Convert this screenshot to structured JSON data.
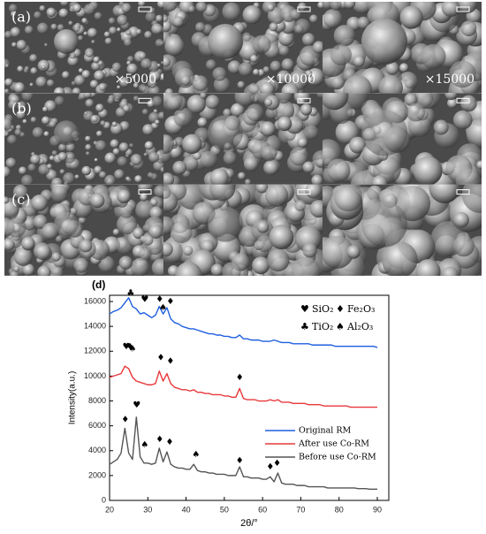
{
  "sem_figure": {
    "row_labels": [
      "(a)",
      "(b)",
      "(c)"
    ],
    "magnifications": [
      "×5000",
      "×10000",
      "×15000"
    ]
  },
  "chart_data": {
    "type": "line",
    "panel_label": "(d)",
    "x_label": "2θ/°",
    "y_label": "Intensity(a.u.)",
    "xlim": [
      20,
      93
    ],
    "xticks": [
      20,
      30,
      40,
      50,
      60,
      70,
      80,
      90
    ],
    "ylim": [
      0,
      16500
    ],
    "yticks": [
      0,
      2000,
      4000,
      6000,
      8000,
      10000,
      12000,
      14000,
      16000
    ],
    "x": [
      20,
      21,
      22,
      23,
      24,
      25,
      26,
      27,
      28,
      29,
      30,
      31,
      32,
      33,
      34,
      35,
      36,
      37,
      38,
      39,
      40,
      41,
      42,
      43,
      44,
      45,
      46,
      47,
      48,
      49,
      50,
      51,
      52,
      53,
      54,
      55,
      56,
      57,
      58,
      59,
      60,
      61,
      62,
      63,
      64,
      65,
      66,
      67,
      68,
      69,
      70,
      71,
      72,
      73,
      74,
      75,
      76,
      77,
      78,
      79,
      80,
      81,
      82,
      83,
      84,
      85,
      86,
      87,
      88,
      89,
      90
    ],
    "series": [
      {
        "name": "Original RM",
        "color": "#1f5fe0",
        "values": [
          15000,
          15200,
          15300,
          15500,
          15900,
          16300,
          15600,
          15400,
          15000,
          15100,
          14900,
          14700,
          14900,
          15600,
          15000,
          15500,
          14600,
          14300,
          14200,
          14000,
          13900,
          13800,
          13800,
          13700,
          13600,
          13500,
          13400,
          13400,
          13300,
          13300,
          13200,
          13200,
          13100,
          13100,
          13300,
          13000,
          13000,
          12900,
          12900,
          12900,
          12800,
          12800,
          12800,
          12900,
          12800,
          12700,
          12700,
          12700,
          12600,
          12600,
          12600,
          12600,
          12600,
          12500,
          12500,
          12500,
          12500,
          12500,
          12500,
          12400,
          12400,
          12400,
          12400,
          12400,
          12400,
          12400,
          12400,
          12400,
          12400,
          12400,
          12300
        ]
      },
      {
        "name": "After use Co-RM",
        "color": "#e8383a",
        "values": [
          9900,
          10000,
          10100,
          10200,
          10800,
          10600,
          9900,
          9600,
          9500,
          9400,
          9300,
          9300,
          9400,
          10400,
          9600,
          10200,
          9400,
          9100,
          9000,
          8900,
          8900,
          8800,
          8900,
          8700,
          8700,
          8600,
          8600,
          8500,
          8500,
          8500,
          8400,
          8400,
          8300,
          8300,
          9000,
          8200,
          8100,
          8100,
          8100,
          8000,
          8000,
          8000,
          8100,
          8000,
          8100,
          7900,
          7900,
          7900,
          7800,
          7800,
          7800,
          7800,
          7700,
          7700,
          7700,
          7700,
          7600,
          7600,
          7600,
          7600,
          7600,
          7600,
          7600,
          7500,
          7500,
          7500,
          7500,
          7500,
          7500,
          7500,
          7500
        ]
      },
      {
        "name": "Before use Co-RM",
        "color": "#555555",
        "values": [
          2900,
          3100,
          3300,
          3800,
          5800,
          3800,
          3300,
          6700,
          3500,
          3000,
          3000,
          2900,
          3000,
          4200,
          3100,
          3900,
          2900,
          2700,
          2600,
          2600,
          2500,
          2500,
          2900,
          2400,
          2300,
          2300,
          2200,
          2200,
          2100,
          2100,
          2100,
          2000,
          2000,
          2000,
          2700,
          1900,
          1900,
          1800,
          1800,
          1800,
          1700,
          1700,
          1900,
          1500,
          2200,
          1400,
          1300,
          1300,
          1300,
          1200,
          1200,
          1200,
          1100,
          1100,
          1100,
          1100,
          1100,
          1000,
          1000,
          1000,
          1000,
          1000,
          1000,
          1000,
          1000,
          950,
          950,
          950,
          900,
          900,
          900
        ]
      }
    ],
    "compound_legend": [
      {
        "symbol": "♥",
        "label": "SiO₂"
      },
      {
        "symbol": "♦",
        "label": "Fe₂O₃"
      },
      {
        "symbol": "♣",
        "label": "TiO₂"
      },
      {
        "symbol": "♠",
        "label": "Al₂O₃"
      }
    ],
    "annotations": [
      {
        "text": "♣",
        "x": 25.5,
        "y": 16300
      },
      {
        "text": "♥",
        "x": 29.2,
        "y": 15800
      },
      {
        "text": "♦",
        "x": 33.1,
        "y": 15800
      },
      {
        "text": "♠",
        "x": 34,
        "y": 15100
      },
      {
        "text": "♦",
        "x": 35.9,
        "y": 15600
      },
      {
        "text": "♥",
        "x": 24.4,
        "y": 12000
      },
      {
        "text": "♦",
        "x": 25.3,
        "y": 12000
      },
      {
        "text": "♠",
        "x": 26,
        "y": 11800
      },
      {
        "text": "♦",
        "x": 33.4,
        "y": 11100
      },
      {
        "text": "♦",
        "x": 35.9,
        "y": 10800
      },
      {
        "text": "♦",
        "x": 54,
        "y": 9500
      },
      {
        "text": "♦",
        "x": 24.1,
        "y": 6100
      },
      {
        "text": "♥",
        "x": 27.1,
        "y": 7300
      },
      {
        "text": "♠",
        "x": 29.2,
        "y": 4100
      },
      {
        "text": "♦",
        "x": 33.1,
        "y": 4500
      },
      {
        "text": "♦",
        "x": 35.7,
        "y": 4300
      },
      {
        "text": "♠",
        "x": 42.6,
        "y": 3300
      },
      {
        "text": "♦",
        "x": 54,
        "y": 2800
      },
      {
        "text": "♦",
        "x": 62,
        "y": 2300
      },
      {
        "text": "♦",
        "x": 63.8,
        "y": 2600
      }
    ]
  }
}
